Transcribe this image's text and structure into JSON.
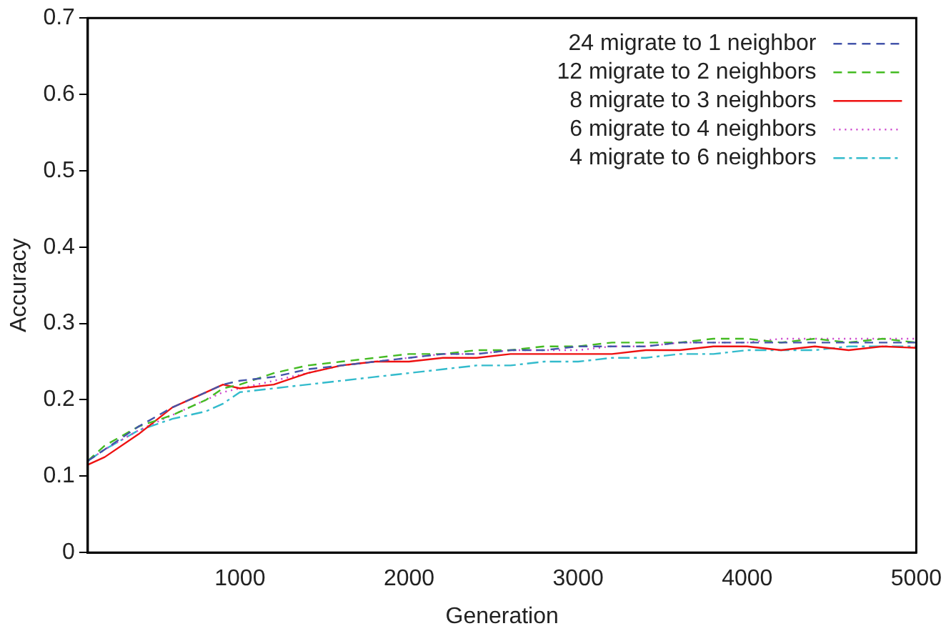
{
  "chart_data": {
    "type": "line",
    "xlabel": "Generation",
    "ylabel": "Accuracy",
    "xlim": [
      100,
      5000
    ],
    "xticks": [
      1000,
      2000,
      3000,
      4000,
      5000
    ],
    "ylim": [
      0,
      0.7
    ],
    "yticks": [
      0,
      0.1,
      0.2,
      0.3,
      0.4,
      0.5,
      0.6,
      0.7
    ],
    "legend": "top right",
    "marker": "none",
    "x": [
      100,
      200,
      400,
      600,
      800,
      900,
      1000,
      1200,
      1400,
      1600,
      1800,
      2000,
      2200,
      2400,
      2600,
      2800,
      3000,
      3200,
      3400,
      3600,
      3800,
      4000,
      4200,
      4400,
      4600,
      4800,
      5000
    ],
    "series": [
      {
        "name": "24 migrate to 1 neighbor",
        "color": "#4455aa",
        "line_style": "dashed",
        "values": [
          0.12,
          0.135,
          0.165,
          0.19,
          0.21,
          0.22,
          0.225,
          0.23,
          0.24,
          0.245,
          0.25,
          0.255,
          0.26,
          0.26,
          0.265,
          0.265,
          0.27,
          0.27,
          0.27,
          0.275,
          0.275,
          0.275,
          0.275,
          0.275,
          0.275,
          0.275,
          0.275
        ]
      },
      {
        "name": "12 migrate to 2 neighbors",
        "color": "#44bb22",
        "line_style": "dashed",
        "values": [
          0.12,
          0.14,
          0.165,
          0.18,
          0.2,
          0.215,
          0.22,
          0.235,
          0.245,
          0.25,
          0.255,
          0.26,
          0.26,
          0.265,
          0.265,
          0.27,
          0.27,
          0.275,
          0.275,
          0.275,
          0.28,
          0.28,
          0.275,
          0.28,
          0.275,
          0.28,
          0.275
        ]
      },
      {
        "name": "8 migrate to 3 neighbors",
        "color": "#ee1111",
        "line_style": "solid",
        "values": [
          0.115,
          0.125,
          0.155,
          0.19,
          0.21,
          0.22,
          0.215,
          0.22,
          0.235,
          0.245,
          0.25,
          0.25,
          0.255,
          0.255,
          0.26,
          0.26,
          0.26,
          0.26,
          0.265,
          0.265,
          0.27,
          0.27,
          0.265,
          0.27,
          0.265,
          0.27,
          0.268
        ]
      },
      {
        "name": "6 migrate to 4 neighbors",
        "color": "#cc44cc",
        "line_style": "dotted",
        "values": [
          0.12,
          0.135,
          0.16,
          0.18,
          0.2,
          0.21,
          0.215,
          0.225,
          0.235,
          0.245,
          0.25,
          0.255,
          0.26,
          0.26,
          0.265,
          0.265,
          0.265,
          0.27,
          0.27,
          0.275,
          0.275,
          0.275,
          0.28,
          0.28,
          0.28,
          0.28,
          0.28
        ]
      },
      {
        "name": "4 migrate to 6 neighbors",
        "color": "#33bbcc",
        "line_style": "dashdot",
        "values": [
          0.12,
          0.135,
          0.16,
          0.175,
          0.185,
          0.195,
          0.21,
          0.215,
          0.22,
          0.225,
          0.23,
          0.235,
          0.24,
          0.245,
          0.245,
          0.25,
          0.25,
          0.255,
          0.255,
          0.26,
          0.26,
          0.265,
          0.265,
          0.265,
          0.27,
          0.27,
          0.27
        ]
      }
    ]
  }
}
